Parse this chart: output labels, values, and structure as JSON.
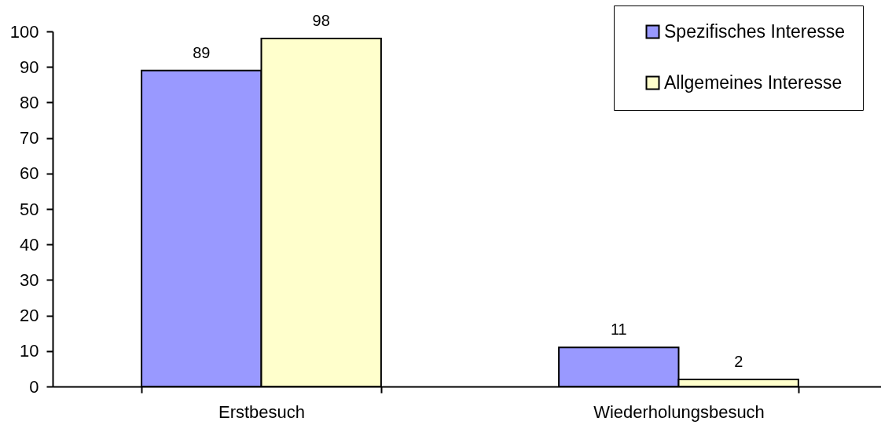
{
  "chart_data": {
    "type": "bar",
    "categories": [
      "Erstbesuch",
      "Wiederholungsbesuch"
    ],
    "series": [
      {
        "name": "Spezifisches Interesse",
        "color": "#9999ff",
        "values": [
          89,
          11
        ]
      },
      {
        "name": "Allgemeines Interesse",
        "color": "#ffffcc",
        "values": [
          98,
          2
        ]
      }
    ],
    "ylim": [
      0,
      100
    ],
    "yticks": [
      0,
      10,
      20,
      30,
      40,
      50,
      60,
      70,
      80,
      90,
      100
    ],
    "data_labels": true,
    "legend": "top right"
  }
}
